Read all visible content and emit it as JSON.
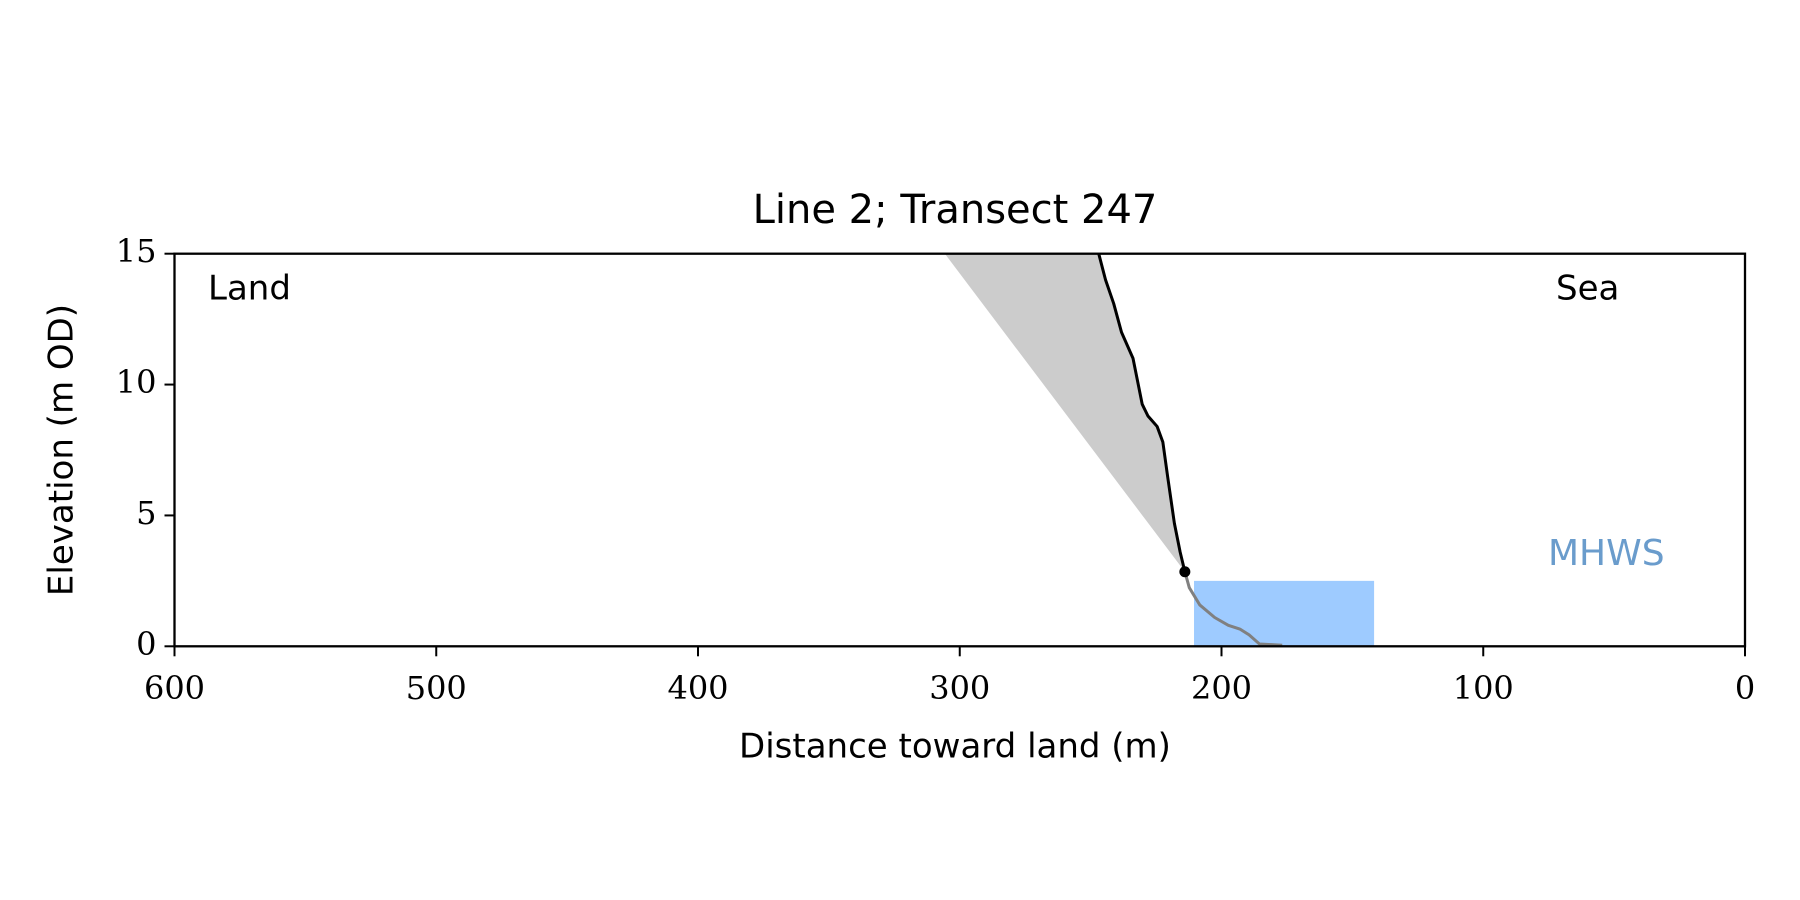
{
  "chart_data": {
    "type": "line",
    "title": "Line 2; Transect 247",
    "xlabel": "Distance toward land (m)",
    "ylabel": "Elevation (m OD)",
    "xlim": [
      600,
      0
    ],
    "ylim": [
      0,
      15
    ],
    "xticks": [
      600,
      500,
      400,
      300,
      200,
      100,
      0
    ],
    "yticks": [
      0,
      5,
      10,
      15
    ],
    "annotations": {
      "land": "Land",
      "sea": "Sea"
    },
    "shaded_region": {
      "color": "#cccccc",
      "x": [
        305.7,
        246.9,
        244.3,
        241.2,
        238.2,
        233.8,
        230.3,
        228.1,
        224.6,
        222.4,
        220.6,
        218.0,
        215.8,
        214.0
      ],
      "y": [
        15,
        15,
        14.0,
        13.1,
        12.0,
        11.0,
        9.25,
        8.8,
        8.4,
        7.8,
        6.5,
        4.7,
        3.6,
        2.85
      ]
    },
    "mhws": {
      "label": "MHWS",
      "color": "#9ecbff",
      "label_color": "#6a9ccc",
      "x": [
        210.5,
        141.7
      ],
      "height": 2.5
    },
    "cliff": {
      "color": "#000000",
      "x": [
        246.9,
        244.3,
        241.2,
        238.2,
        233.8,
        230.3,
        228.1,
        224.6,
        222.4,
        220.6,
        218.0,
        215.8,
        214.0
      ],
      "y": [
        15,
        14.0,
        13.1,
        12.0,
        11.0,
        9.25,
        8.8,
        8.4,
        7.8,
        6.5,
        4.7,
        3.6,
        2.85
      ]
    },
    "beach": {
      "color": "#808080",
      "x": [
        214.0,
        212.3,
        208.3,
        202.6,
        197.4,
        193.0,
        189.5,
        185.5,
        176.8
      ],
      "y": [
        2.85,
        2.24,
        1.58,
        1.1,
        0.8,
        0.66,
        0.44,
        0.09,
        0.04
      ]
    },
    "cliff_toe": {
      "x": 214.0,
      "y": 2.85,
      "color": "#000000"
    }
  }
}
